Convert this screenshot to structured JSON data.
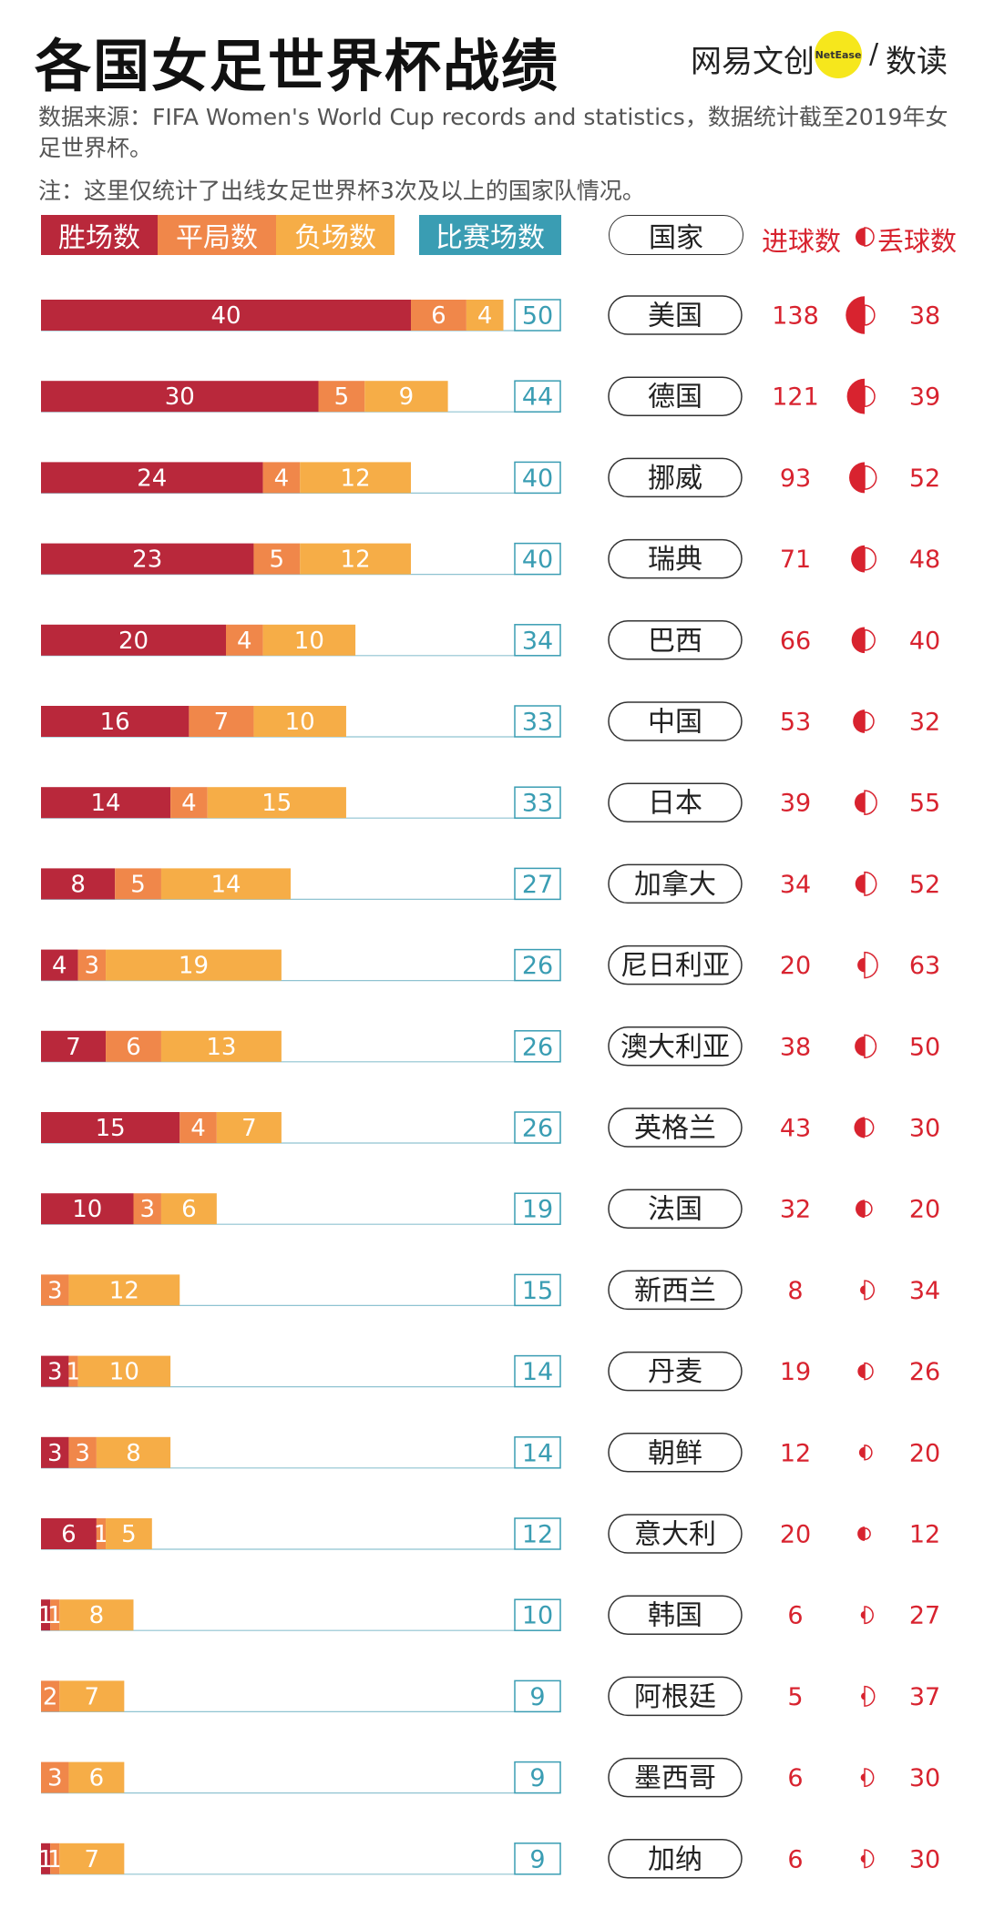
{
  "header": {
    "title": "各国女足世界杯战绩",
    "brand_left": "网易文创",
    "brand_dot": "NetEase",
    "brand_slash": "/",
    "brand_right": "数读",
    "source": "数据来源：FIFA Women's World Cup records and statistics，数据统计截至2019年女足世界杯。",
    "note": "注：这里仅统计了出线女足世界杯3次及以上的国家队情况。"
  },
  "legend": {
    "wins": "胜场数",
    "draws": "平局数",
    "losses": "负场数",
    "matches": "比赛场数",
    "country": "国家",
    "goals_scored": "进球数",
    "goals_against": "丢球数"
  },
  "colors": {
    "wins": "#b9283b",
    "draws": "#f0874a",
    "losses": "#f6ad47",
    "matches": "#3a9db3",
    "goals": "#d8232f"
  },
  "chart_data": {
    "type": "bar",
    "stacked": true,
    "orientation": "horizontal",
    "categories": [
      "美国",
      "德国",
      "挪威",
      "瑞典",
      "巴西",
      "中国",
      "日本",
      "加拿大",
      "尼日利亚",
      "澳大利亚",
      "英格兰",
      "法国",
      "新西兰",
      "丹麦",
      "朝鲜",
      "意大利",
      "韩国",
      "阿根廷",
      "墨西哥",
      "加纳"
    ],
    "series": [
      {
        "name": "胜场数",
        "values": [
          40,
          30,
          24,
          23,
          20,
          16,
          14,
          8,
          4,
          7,
          15,
          10,
          0,
          3,
          3,
          6,
          1,
          0,
          0,
          1
        ]
      },
      {
        "name": "平局数",
        "values": [
          6,
          5,
          4,
          5,
          4,
          7,
          4,
          5,
          3,
          6,
          4,
          3,
          3,
          1,
          3,
          1,
          1,
          2,
          3,
          1
        ]
      },
      {
        "name": "负场数",
        "values": [
          4,
          9,
          12,
          12,
          10,
          10,
          15,
          14,
          19,
          13,
          7,
          6,
          12,
          10,
          8,
          5,
          8,
          7,
          6,
          7
        ]
      }
    ],
    "matches": [
      50,
      44,
      40,
      40,
      34,
      33,
      33,
      27,
      26,
      26,
      26,
      19,
      15,
      14,
      14,
      12,
      10,
      9,
      9,
      9
    ],
    "goals_scored": [
      138,
      121,
      93,
      71,
      66,
      53,
      39,
      34,
      20,
      38,
      43,
      32,
      8,
      19,
      12,
      20,
      6,
      5,
      6,
      6
    ],
    "goals_against": [
      38,
      39,
      52,
      48,
      40,
      32,
      55,
      52,
      63,
      50,
      30,
      20,
      34,
      26,
      20,
      12,
      27,
      37,
      30,
      30
    ],
    "xlim": [
      0,
      50
    ]
  }
}
